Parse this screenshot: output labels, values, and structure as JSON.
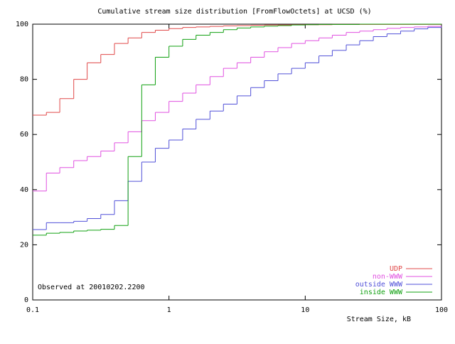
{
  "chart_data": {
    "type": "line",
    "step": "post",
    "title": "Cumulative stream size distribution [FromFlowOctets] at UCSD (%)",
    "xlabel": "Stream Size, kB",
    "annotation": "Observed at 20010202.2200",
    "xscale": "log",
    "legend": "lower right",
    "grid": false,
    "xlim": [
      0.1,
      100
    ],
    "xticks": [
      0.1,
      1,
      10,
      100
    ],
    "ylim": [
      0,
      100
    ],
    "yticks": [
      0,
      20,
      40,
      60,
      80,
      100
    ],
    "x": [
      0.1,
      0.126,
      0.158,
      0.2,
      0.251,
      0.316,
      0.398,
      0.501,
      0.631,
      0.794,
      1,
      1.26,
      1.58,
      2,
      2.51,
      3.16,
      3.98,
      5.01,
      6.31,
      7.94,
      10,
      12.6,
      15.8,
      20,
      25.1,
      31.6,
      39.8,
      50.1,
      63.1,
      79.4,
      100
    ],
    "series": [
      {
        "name": "UDP",
        "color": "#e04848",
        "values": [
          67,
          68,
          73,
          80,
          86,
          89,
          93,
          95,
          97,
          97.8,
          98.4,
          98.8,
          99,
          99.2,
          99.4,
          99.5,
          99.6,
          99.7,
          99.7,
          99.8,
          99.8,
          99.8,
          99.9,
          99.9,
          99.9,
          99.9,
          99.9,
          99.9,
          99.9,
          99.9,
          99.9
        ]
      },
      {
        "name": "non-WWW",
        "color": "#e050e0",
        "values": [
          39.5,
          46,
          48,
          50.5,
          52,
          54,
          57,
          61,
          65,
          68,
          72,
          75,
          78,
          81,
          84,
          86,
          88,
          90,
          91.5,
          93,
          94,
          95,
          96,
          97,
          97.5,
          98,
          98.5,
          98.8,
          99,
          99.2,
          99.3
        ]
      },
      {
        "name": "outside WWW",
        "color": "#5050d8",
        "values": [
          25.5,
          28,
          28,
          28.5,
          29.5,
          31,
          36,
          43,
          50,
          55,
          58,
          62,
          65.5,
          68.5,
          71,
          74,
          77,
          79.5,
          82,
          84,
          86,
          88.5,
          90.5,
          92.5,
          94,
          95.5,
          96.5,
          97.5,
          98.3,
          98.8,
          99
        ]
      },
      {
        "name": "inside WWW",
        "color": "#10a010",
        "values": [
          23.5,
          24.2,
          24.5,
          25,
          25.3,
          25.6,
          27,
          52,
          78,
          88,
          92,
          94.5,
          96,
          97,
          98,
          98.6,
          99,
          99.3,
          99.5,
          99.7,
          99.8,
          99.9,
          99.9,
          99.9,
          100,
          100,
          100,
          100,
          100,
          100,
          100
        ]
      }
    ]
  }
}
